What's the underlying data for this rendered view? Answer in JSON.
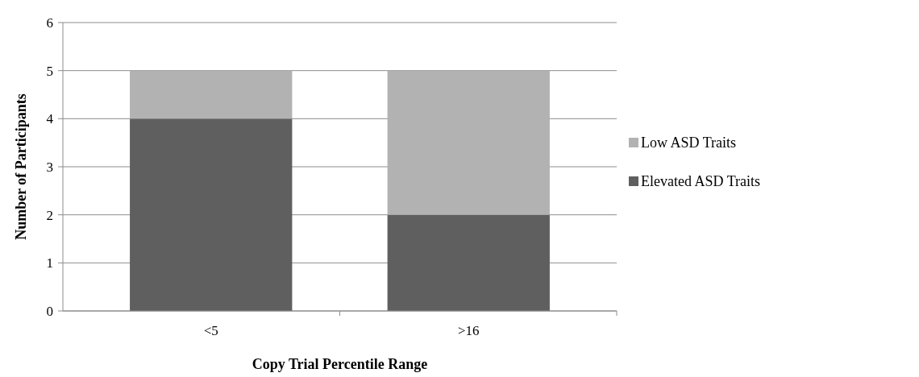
{
  "chart_data": {
    "type": "bar",
    "stacked": true,
    "xlabel": "Copy Trial Percentile Range",
    "ylabel": "Number of Participants",
    "categories": [
      "<5",
      ">16"
    ],
    "series": [
      {
        "name": "Elevated ASD Traits",
        "color": "#5f5f5f",
        "values": [
          4,
          2
        ]
      },
      {
        "name": "Low ASD Traits",
        "color": "#b2b2b2",
        "values": [
          1,
          3
        ]
      }
    ],
    "ylim": [
      0,
      6
    ],
    "yticks": [
      0,
      1,
      2,
      3,
      4,
      5,
      6
    ],
    "grid": "y",
    "legend": "right"
  }
}
